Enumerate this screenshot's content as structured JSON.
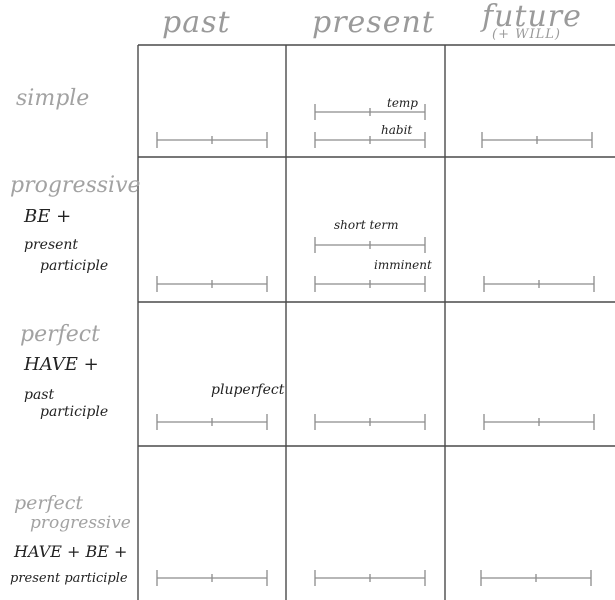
{
  "columns": [
    {
      "label": "past"
    },
    {
      "label": "present"
    },
    {
      "label": "future",
      "sublabel": "(+ WILL)"
    }
  ],
  "rows": [
    {
      "label": "simple",
      "formula": []
    },
    {
      "label": "progressive",
      "formula": [
        "BE +",
        "present",
        "participle"
      ]
    },
    {
      "label": "perfect",
      "formula": [
        "HAVE +",
        "past",
        "participle"
      ]
    },
    {
      "label": "perfect",
      "label2": "progressive",
      "formula": [
        "HAVE + BE +",
        "present participle"
      ]
    }
  ],
  "annotations": {
    "temp": "temp",
    "habit": "habit",
    "short_term": "short term",
    "imminent": "imminent",
    "pluperfect": "pluperfect"
  },
  "colors": {
    "grid": "#4a4a4a",
    "timeline": "#8c8c8c",
    "gray_text": "#a2a2a2",
    "dark_text": "#222222"
  }
}
